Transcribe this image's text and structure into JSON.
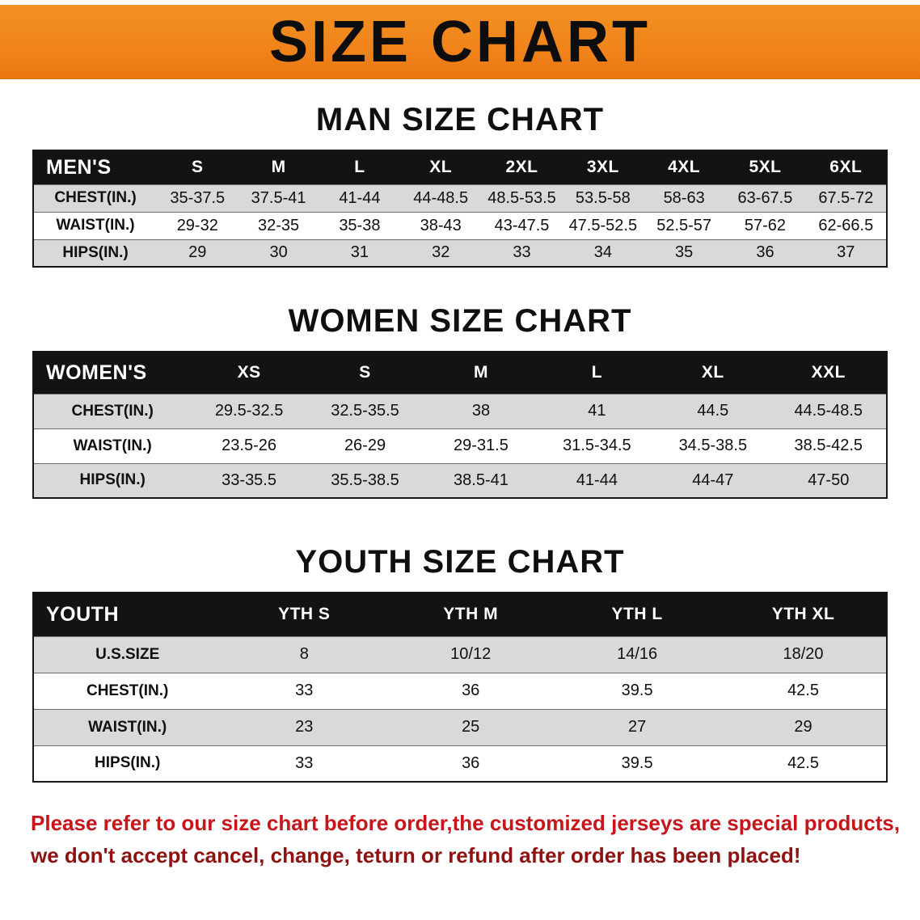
{
  "banner": {
    "title": "SIZE CHART",
    "bg_color": "#EF8118",
    "text_color": "#0D0D0D"
  },
  "colors": {
    "table_header_bg": "#131313",
    "table_header_text": "#FFFFFF",
    "row_stripe": "#D9D9D9",
    "disclaimer_red": "#C8151B"
  },
  "sections": [
    {
      "heading": "MAN SIZE CHART",
      "table": {
        "header": [
          "MEN'S",
          "S",
          "M",
          "L",
          "XL",
          "2XL",
          "3XL",
          "4XL",
          "5XL",
          "6XL"
        ],
        "rows": [
          [
            "CHEST(IN.)",
            "35-37.5",
            "37.5-41",
            "41-44",
            "44-48.5",
            "48.5-53.5",
            "53.5-58",
            "58-63",
            "63-67.5",
            "67.5-72"
          ],
          [
            "WAIST(IN.)",
            "29-32",
            "32-35",
            "35-38",
            "38-43",
            "43-47.5",
            "47.5-52.5",
            "52.5-57",
            "57-62",
            "62-66.5"
          ],
          [
            "HIPS(IN.)",
            "29",
            "30",
            "31",
            "32",
            "33",
            "34",
            "35",
            "36",
            "37"
          ]
        ]
      }
    },
    {
      "heading": "WOMEN SIZE CHART",
      "table": {
        "header": [
          "WOMEN'S",
          "XS",
          "S",
          "M",
          "L",
          "XL",
          "XXL"
        ],
        "rows": [
          [
            "CHEST(IN.)",
            "29.5-32.5",
            "32.5-35.5",
            "38",
            "41",
            "44.5",
            "44.5-48.5"
          ],
          [
            "WAIST(IN.)",
            "23.5-26",
            "26-29",
            "29-31.5",
            "31.5-34.5",
            "34.5-38.5",
            "38.5-42.5"
          ],
          [
            "HIPS(IN.)",
            "33-35.5",
            "35.5-38.5",
            "38.5-41",
            "41-44",
            "44-47",
            "47-50"
          ]
        ]
      }
    },
    {
      "heading": "YOUTH SIZE CHART",
      "table": {
        "header": [
          "YOUTH",
          "YTH S",
          "YTH M",
          "YTH L",
          "YTH XL"
        ],
        "rows": [
          [
            "U.S.SIZE",
            "8",
            "10/12",
            "14/16",
            "18/20"
          ],
          [
            "CHEST(IN.)",
            "33",
            "36",
            "39.5",
            "42.5"
          ],
          [
            "WAIST(IN.)",
            "23",
            "25",
            "27",
            "29"
          ],
          [
            "HIPS(IN.)",
            "33",
            "36",
            "39.5",
            "42.5"
          ]
        ]
      }
    }
  ],
  "disclaimer": {
    "line1": "Please refer to our size chart before order,the customized jerseys are special products,",
    "line2": "we don't accept cancel, change, teturn or refund after order has been placed!"
  }
}
